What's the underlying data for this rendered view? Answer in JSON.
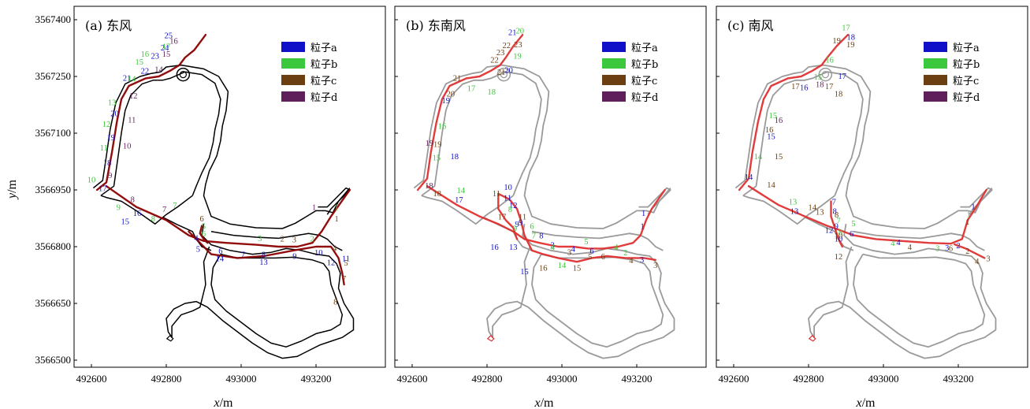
{
  "colors": {
    "a": "#1010c8",
    "b": "#3cc83c",
    "c": "#6b3f12",
    "d": "#5e1f5a",
    "track": "#8b0000",
    "track_light": "#e03030",
    "shore": "#000000",
    "shore_light": "#9a9a9a"
  },
  "axes": {
    "x_label": "x",
    "x_unit": "/m",
    "y_label": "y",
    "y_unit": "/m",
    "x_ticks": [
      "492600",
      "492800",
      "493000",
      "493200"
    ],
    "y_ticks": [
      "3567400",
      "3567250",
      "3567100",
      "3566950",
      "3566800",
      "3566650",
      "3566500"
    ]
  },
  "legend": [
    "粒子a",
    "粒子b",
    "粒子c",
    "粒子d"
  ],
  "chart_data": [
    {
      "type": "scatter",
      "title": "(a) 东风",
      "xlim": [
        492580,
        493340
      ],
      "ylim": [
        3566470,
        3567400
      ],
      "series": [
        {
          "name": "粒子a",
          "points": [
            [
              492630,
              3566955,
              "17"
            ],
            [
              492642,
              3567023,
              "18"
            ],
            [
              492652,
              3567090,
              "19"
            ],
            [
              492662,
              3567153,
              "20"
            ],
            [
              492695,
              3567247,
              "21"
            ],
            [
              492743,
              3567266,
              "22"
            ],
            [
              492770,
              3567305,
              "23"
            ],
            [
              492796,
              3567327,
              "24"
            ],
            [
              492806,
              3567359,
              "25"
            ],
            [
              492722,
              3566890,
              "16"
            ],
            [
              492690,
              3566868,
              "15"
            ],
            [
              492880,
              3566824,
              "4"
            ],
            [
              492885,
              3566795,
              "5"
            ],
            [
              492945,
              3566790,
              "6"
            ],
            [
              493005,
              3566780,
              "7"
            ],
            [
              493060,
              3566780,
              "8"
            ],
            [
              493143,
              3566776,
              "9"
            ],
            [
              493207,
              3566785,
              "10"
            ],
            [
              493240,
              3566759,
              "12"
            ],
            [
              492943,
              3566770,
              "14"
            ],
            [
              493060,
              3566760,
              "13"
            ],
            [
              493280,
              3566770,
              "11"
            ]
          ]
        },
        {
          "name": "粒子b",
          "points": [
            [
              492600,
              3566978,
              "10"
            ],
            [
              492633,
              3567062,
              "11"
            ],
            [
              492640,
              3567125,
              "12"
            ],
            [
              492655,
              3567182,
              "13"
            ],
            [
              492708,
              3567245,
              "14"
            ],
            [
              492728,
              3567290,
              "15"
            ],
            [
              492743,
              3567310,
              "16"
            ],
            [
              492800,
              3567330,
              "17"
            ],
            [
              492672,
              3566905,
              "9"
            ],
            [
              492765,
              3566875,
              "8"
            ],
            [
              492823,
              3566910,
              "7"
            ],
            [
              492900,
              3566855,
              "5"
            ],
            [
              492900,
              3566835,
              "6"
            ],
            [
              493050,
              3566823,
              "3"
            ],
            [
              493190,
              3566822,
              "2"
            ],
            [
              493255,
              3566905,
              "1"
            ]
          ]
        },
        {
          "name": "粒子c",
          "points": [
            [
              492895,
              3566875,
              "6"
            ],
            [
              493110,
              3566822,
              "2"
            ],
            [
              493142,
              3566820,
              "3"
            ],
            [
              493250,
              3566797,
              "4"
            ],
            [
              493280,
              3566758,
              "5"
            ],
            [
              493275,
              3566717,
              "7"
            ],
            [
              493252,
              3566655,
              "8"
            ],
            [
              493255,
              3566875,
              "1"
            ]
          ]
        },
        {
          "name": "粒子d",
          "points": [
            [
              492710,
              3566926,
              "8"
            ],
            [
              492650,
              3566990,
              "9"
            ],
            [
              492695,
              3567068,
              "10"
            ],
            [
              492708,
              3567136,
              "11"
            ],
            [
              492712,
              3567200,
              "12"
            ],
            [
              492780,
              3567270,
              "14"
            ],
            [
              492800,
              3567310,
              "15"
            ],
            [
              492820,
              3567345,
              "16"
            ],
            [
              492795,
              3566900,
              "7"
            ],
            [
              493195,
              3566905,
              "1"
            ]
          ]
        }
      ]
    },
    {
      "type": "scatter",
      "title": "(b) 东南风",
      "xlim": [
        492580,
        493340
      ],
      "ylim": [
        3566470,
        3567400
      ],
      "series": [
        {
          "name": "粒子a",
          "points": [
            [
              492725,
              3566925,
              "17"
            ],
            [
              492713,
              3567040,
              "18"
            ],
            [
              492690,
              3567188,
              "19"
            ],
            [
              492858,
              3567268,
              "20"
            ],
            [
              492868,
              3567368,
              "21"
            ],
            [
              492856,
              3566958,
              "10"
            ],
            [
              492855,
              3566930,
              "11"
            ],
            [
              492870,
              3566910,
              "12"
            ],
            [
              492890,
              3566865,
              "9"
            ],
            [
              492945,
              3566830,
              "8"
            ],
            [
              492975,
              3566805,
              "3"
            ],
            [
              493030,
              3566795,
              "4"
            ],
            [
              493080,
              3566790,
              "6"
            ],
            [
              493214,
              3566767,
              "3"
            ],
            [
              493218,
              3566890,
              "1"
            ],
            [
              493215,
              3566855,
              "1"
            ],
            [
              492820,
              3566800,
              "16"
            ],
            [
              492900,
              3566735,
              "15"
            ],
            [
              492870,
              3566800,
              "13"
            ],
            [
              492880,
              3566860,
              "9"
            ]
          ]
        },
        {
          "name": "粒子b",
          "points": [
            [
              492730,
              3566950,
              "14"
            ],
            [
              492665,
              3567036,
              "15"
            ],
            [
              492680,
              3567120,
              "16"
            ],
            [
              492758,
              3567220,
              "17"
            ],
            [
              492812,
              3567210,
              "18"
            ],
            [
              492881,
              3567305,
              "19"
            ],
            [
              492888,
              3567372,
              "20"
            ],
            [
              492862,
              3566900,
              "8"
            ],
            [
              492875,
              3566850,
              "9"
            ],
            [
              492920,
              3566855,
              "6"
            ],
            [
              492925,
              3566830,
              "7"
            ],
            [
              492975,
              3566800,
              "4"
            ],
            [
              493000,
              3566752,
              "14"
            ],
            [
              493065,
              3566815,
              "5"
            ],
            [
              493145,
              3566800,
              "4"
            ],
            [
              493170,
              3566785,
              "2"
            ]
          ]
        },
        {
          "name": "粒子c",
          "points": [
            [
              492667,
              3566942,
              "18"
            ],
            [
              492668,
              3567072,
              "19"
            ],
            [
              492703,
              3567205,
              "20"
            ],
            [
              492720,
              3567247,
              "21"
            ],
            [
              492838,
              3567263,
              "21"
            ],
            [
              492820,
              3567295,
              "22"
            ],
            [
              492836,
              3567315,
              "23"
            ],
            [
              492852,
              3567333,
              "22"
            ],
            [
              492883,
              3567335,
              "23"
            ],
            [
              492825,
              3566942,
              "11"
            ],
            [
              492840,
              3566880,
              "17"
            ],
            [
              492895,
              3566880,
              "11"
            ],
            [
              493020,
              3566786,
              "3"
            ],
            [
              493075,
              3566775,
              "5"
            ],
            [
              493110,
              3566775,
              "6"
            ],
            [
              493185,
              3566765,
              "4"
            ],
            [
              493250,
              3566752,
              "3"
            ],
            [
              492950,
              3566745,
              "16"
            ],
            [
              493040,
              3566745,
              "15"
            ]
          ]
        },
        {
          "name": "粒子d",
          "points": [
            [
              492645,
              3566962,
              "18"
            ],
            [
              492646,
              3567075,
              "19"
            ]
          ]
        }
      ]
    },
    {
      "type": "scatter",
      "title": "(c) 南风",
      "xlim": [
        492580,
        493340
      ],
      "ylim": [
        3566470,
        3567400
      ],
      "series": [
        {
          "name": "粒子a",
          "points": [
            [
              492640,
              3566985,
              "14"
            ],
            [
              492762,
              3566895,
              "13"
            ],
            [
              492700,
              3567093,
              "15"
            ],
            [
              492788,
              3567222,
              "16"
            ],
            [
              492890,
              3567252,
              "17"
            ],
            [
              492913,
              3567355,
              "18"
            ],
            [
              492868,
              3566920,
              "7"
            ],
            [
              492870,
              3566895,
              "8"
            ],
            [
              492855,
              3566845,
              "12"
            ],
            [
              492874,
              3566855,
              "9"
            ],
            [
              492880,
              3566822,
              "10"
            ],
            [
              492915,
              3566835,
              "6"
            ],
            [
              493040,
              3566812,
              "4"
            ],
            [
              493170,
              3566798,
              "3"
            ],
            [
              493200,
              3566804,
              "2"
            ],
            [
              493240,
              3566907,
              "1"
            ]
          ]
        },
        {
          "name": "粒子b",
          "points": [
            [
              492665,
              3567040,
              "14"
            ],
            [
              492758,
              3566920,
              "13"
            ],
            [
              492705,
              3567148,
              "15"
            ],
            [
              492825,
              3567250,
              "15"
            ],
            [
              492856,
              3567295,
              "16"
            ],
            [
              492900,
              3567380,
              "17"
            ],
            [
              492885,
              3566840,
              "8"
            ],
            [
              492880,
              3566870,
              "7"
            ],
            [
              492920,
              3566862,
              "5"
            ],
            [
              493025,
              3566810,
              "4"
            ],
            [
              493145,
              3566797,
              "3"
            ],
            [
              493228,
              3566885,
              "1"
            ]
          ]
        },
        {
          "name": "粒子c",
          "points": [
            [
              492700,
              3566965,
              "14"
            ],
            [
              492720,
              3567040,
              "15"
            ],
            [
              492695,
              3567110,
              "16"
            ],
            [
              492765,
              3567225,
              "17"
            ],
            [
              492855,
              3567225,
              "17"
            ],
            [
              492880,
              3567205,
              "18"
            ],
            [
              492875,
              3567346,
              "19"
            ],
            [
              492912,
              3567335,
              "19"
            ],
            [
              492810,
              3566905,
              "14"
            ],
            [
              492830,
              3566893,
              "13"
            ],
            [
              492875,
              3566885,
              "8"
            ],
            [
              492880,
              3566830,
              "10"
            ],
            [
              492880,
              3566775,
              "12"
            ],
            [
              493070,
              3566800,
              "4"
            ],
            [
              493180,
              3566797,
              "6"
            ],
            [
              493225,
              3566790,
              "2"
            ],
            [
              493250,
              3566763,
              "4"
            ],
            [
              493280,
              3566770,
              "3"
            ],
            [
              493225,
              3566867,
              "1"
            ]
          ]
        },
        {
          "name": "粒子d",
          "points": [
            [
              492830,
              3567230,
              "18"
            ],
            [
              492720,
              3567135,
              "16"
            ]
          ]
        }
      ]
    }
  ]
}
